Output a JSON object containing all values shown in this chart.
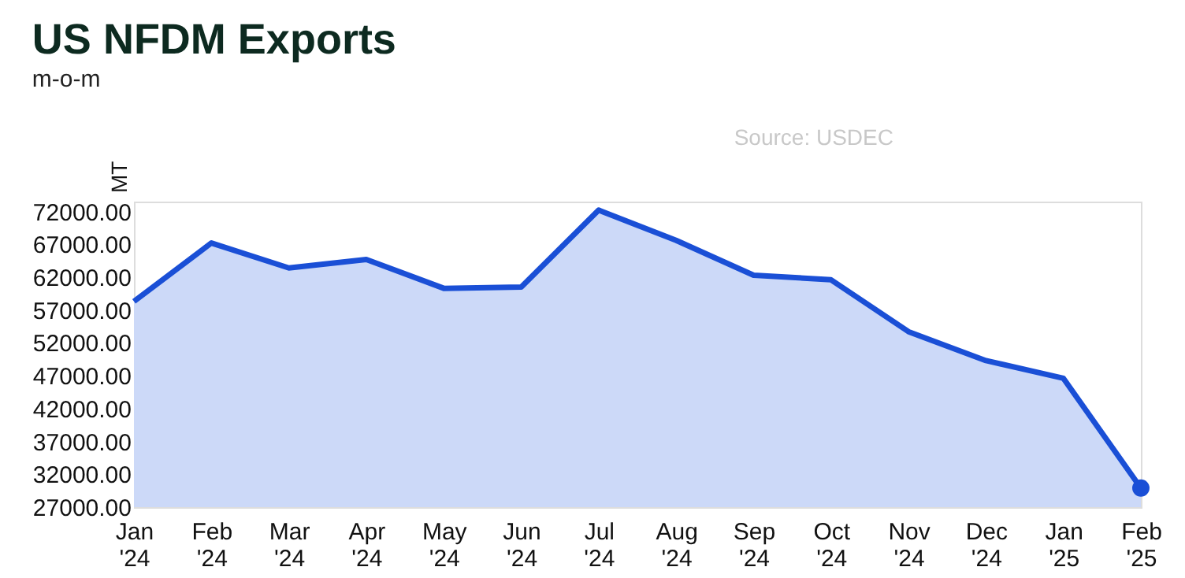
{
  "chart_data": {
    "type": "area",
    "title": "US NFDM Exports",
    "subtitle": "m-o-m",
    "ylabel": "MT",
    "annotations": [
      "Source: USDEC"
    ],
    "categories": [
      "Jan '24",
      "Feb '24",
      "Mar '24",
      "Apr '24",
      "May '24",
      "Jun '24",
      "Jul '24",
      "Aug '24",
      "Sep '24",
      "Oct '24",
      "Nov '24",
      "Dec '24",
      "Jan '25",
      "Feb '25"
    ],
    "series": [
      {
        "color": "#1a4fd6",
        "values": [
          58300,
          67200,
          63400,
          64700,
          60300,
          60500,
          72200,
          67600,
          62300,
          61600,
          53700,
          49300,
          46600,
          29900
        ]
      },
      {
        "type": "scatter",
        "color": "#1a4fd6",
        "x": [
          "Feb '25"
        ],
        "values": [
          29900
        ]
      }
    ],
    "ylim": [
      27000,
      73500
    ],
    "yticks": [
      {
        "value": 27000,
        "label": "27000.00"
      },
      {
        "value": 32000,
        "label": "32000.00"
      },
      {
        "value": 37000,
        "label": "37000.00"
      },
      {
        "value": 42000,
        "label": "42000.00"
      },
      {
        "value": 47000,
        "label": "47000.00"
      },
      {
        "value": 52000,
        "label": "52000.00"
      },
      {
        "value": 57000,
        "label": "57000.00"
      },
      {
        "value": 62000,
        "label": "62000.00"
      },
      {
        "value": 67000,
        "label": "67000.00"
      },
      {
        "value": 72000,
        "label": "72000.00"
      }
    ],
    "grid": false,
    "line_style": "solid"
  }
}
